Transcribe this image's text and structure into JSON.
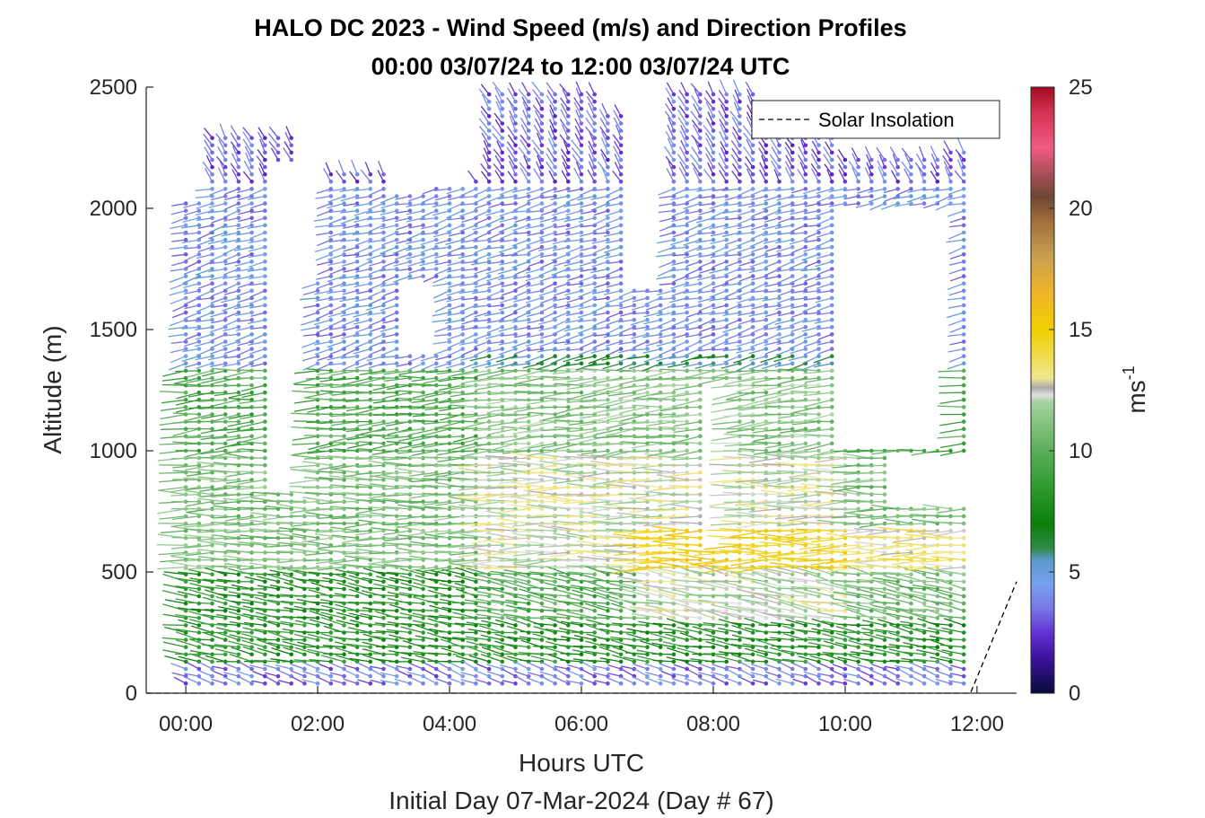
{
  "chart_data": {
    "type": "quiver",
    "title": "HALO DC 2023 - Wind Speed (m/s) and Direction Profiles",
    "subtitle": "00:00 03/07/24 to 12:00 03/07/24  UTC",
    "xlabel": "Hours UTC",
    "ylabel": "Altitude (m)",
    "footer": "Initial Day 07-Mar-2024 (Day # 67)",
    "x_range_hours": [
      -0.6,
      12.6
    ],
    "ylim": [
      0,
      2500
    ],
    "x_ticks": [
      {
        "value": 0,
        "label": "00:00"
      },
      {
        "value": 2,
        "label": "02:00"
      },
      {
        "value": 4,
        "label": "04:00"
      },
      {
        "value": 6,
        "label": "06:00"
      },
      {
        "value": 8,
        "label": "08:00"
      },
      {
        "value": 10,
        "label": "10:00"
      },
      {
        "value": 12,
        "label": "12:00"
      }
    ],
    "y_ticks": [
      {
        "value": 0,
        "label": "0"
      },
      {
        "value": 500,
        "label": "500"
      },
      {
        "value": 1000,
        "label": "1000"
      },
      {
        "value": 1500,
        "label": "1500"
      },
      {
        "value": 2000,
        "label": "2000"
      },
      {
        "value": 2500,
        "label": "2500"
      }
    ],
    "colorbar": {
      "label": "ms",
      "label_superscript": "-1",
      "range": [
        0,
        25
      ],
      "ticks": [
        {
          "value": 0,
          "label": "0"
        },
        {
          "value": 5,
          "label": "5"
        },
        {
          "value": 10,
          "label": "10"
        },
        {
          "value": 15,
          "label": "15"
        },
        {
          "value": 20,
          "label": "20"
        },
        {
          "value": 25,
          "label": "25"
        }
      ],
      "colors": [
        {
          "v": 0,
          "c": "#0a0a3c"
        },
        {
          "v": 1.5,
          "c": "#3c14a0"
        },
        {
          "v": 2.5,
          "c": "#6432d2"
        },
        {
          "v": 3.5,
          "c": "#7878e6"
        },
        {
          "v": 4.5,
          "c": "#78a0f0"
        },
        {
          "v": 5.5,
          "c": "#5a9ac8"
        },
        {
          "v": 6.0,
          "c": "#2e8a46"
        },
        {
          "v": 7.0,
          "c": "#0a800a"
        },
        {
          "v": 8.5,
          "c": "#2e9a2e"
        },
        {
          "v": 10,
          "c": "#5aaf5a"
        },
        {
          "v": 12,
          "c": "#a6d2a0"
        },
        {
          "v": 12.3,
          "c": "#e0e0e0"
        },
        {
          "v": 12.6,
          "c": "#aaaaaa"
        },
        {
          "v": 13,
          "c": "#f0e690"
        },
        {
          "v": 15,
          "c": "#f0d000"
        },
        {
          "v": 16.5,
          "c": "#f0b428"
        },
        {
          "v": 18,
          "c": "#c8a050"
        },
        {
          "v": 19.5,
          "c": "#a06e3c"
        },
        {
          "v": 20.5,
          "c": "#6e4632"
        },
        {
          "v": 22.5,
          "c": "#f05a82"
        },
        {
          "v": 24,
          "c": "#d23250"
        },
        {
          "v": 25,
          "c": "#a00a1e"
        }
      ]
    },
    "legend": {
      "entries": [
        {
          "label": "Solar Insolation",
          "style": "dashed",
          "color": "#000000"
        }
      ],
      "location": "top-right"
    },
    "series": [
      {
        "name": "Solar Insolation",
        "style": "dashed",
        "x_hours": [
          -0.6,
          11.9,
          12.6
        ],
        "altitude_m": [
          0,
          0,
          460
        ]
      }
    ],
    "wind_profiles": {
      "description_rows": "altitude bands with mean speed (m/s) and direction in screen degrees",
      "time_step_hours": 0.2,
      "altitude_step_m": 30,
      "bands": [
        {
          "z0": 0,
          "z1": 120,
          "speed": 4.2,
          "dir": 200
        },
        {
          "z0": 120,
          "z1": 500,
          "speed": 8.0,
          "dir": 190
        },
        {
          "z0": 500,
          "z1": 1000,
          "speed": 10.8,
          "dir": 180
        },
        {
          "z0": 1000,
          "z1": 1350,
          "speed": 9.5,
          "dir": 175
        },
        {
          "z0": 1350,
          "z1": 2100,
          "speed": 4.2,
          "dir": 165
        },
        {
          "z0": 2100,
          "z1": 2500,
          "speed": 3.2,
          "dir": 240
        }
      ]
    }
  }
}
